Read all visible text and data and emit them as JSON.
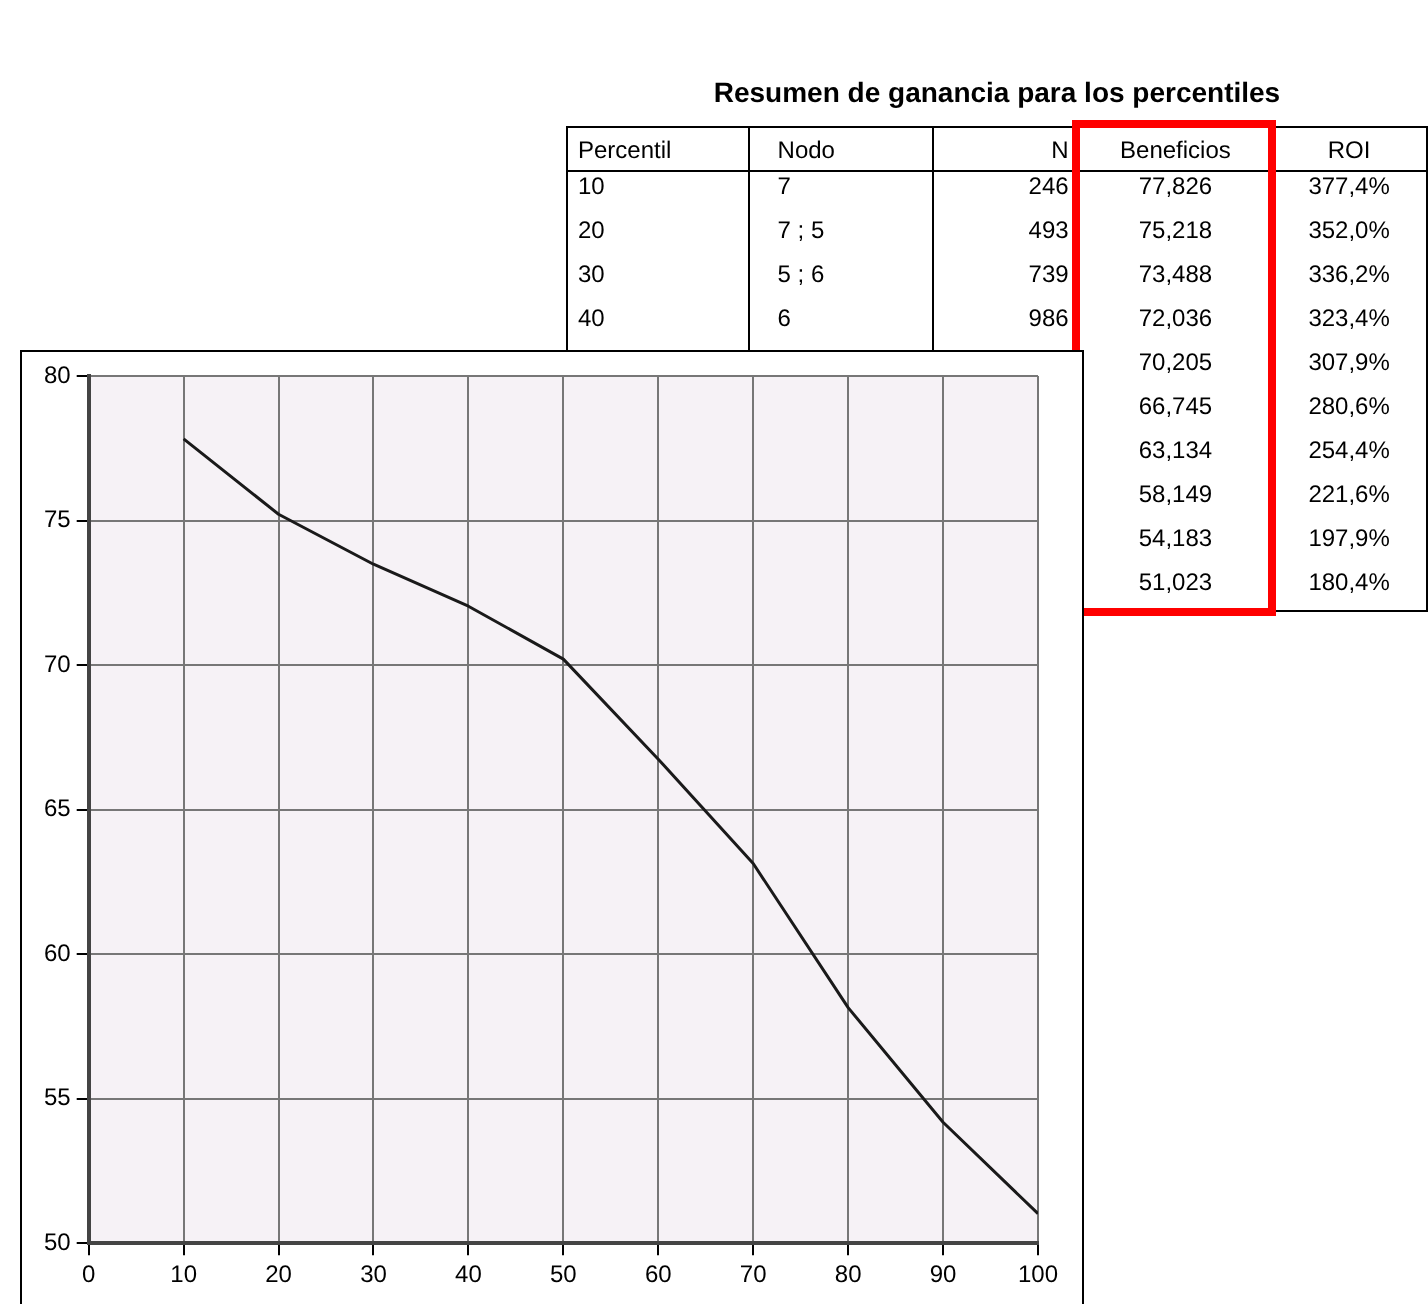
{
  "chart_data": [
    {
      "type": "other",
      "title": "Resumen de ganancia para los percentiles",
      "categories": [
        "Percentil",
        "Nodo",
        "N",
        "Beneficios",
        "ROI"
      ],
      "cell_labels": [
        [
          "10",
          "7",
          "246",
          "77,826",
          "377,4%"
        ],
        [
          "20",
          "7 ;  5",
          "493",
          "75,218",
          "352,0%"
        ],
        [
          "30",
          "5 ;  6",
          "739",
          "73,488",
          "336,2%"
        ],
        [
          "40",
          "6",
          "986",
          "72,036",
          "323,4%"
        ],
        [
          null,
          null,
          null,
          "70,205",
          "307,9%"
        ],
        [
          null,
          null,
          null,
          "66,745",
          "280,6%"
        ],
        [
          null,
          null,
          null,
          "63,134",
          "254,4%"
        ],
        [
          null,
          null,
          null,
          "58,149",
          "221,6%"
        ],
        [
          null,
          null,
          null,
          "54,183",
          "197,9%"
        ],
        [
          null,
          null,
          null,
          "51,023",
          "180,4%"
        ]
      ]
    },
    {
      "type": "line",
      "x": [
        10,
        20,
        30,
        40,
        50,
        60,
        70,
        80,
        90,
        100
      ],
      "series": [
        {
          "color": "#1a1a1a",
          "values": [
            77.826,
            75.218,
            73.488,
            72.036,
            70.205,
            66.745,
            63.134,
            58.149,
            54.183,
            51.023
          ]
        }
      ],
      "xlim": [
        0,
        100
      ],
      "xticks": [
        0,
        10,
        20,
        30,
        40,
        50,
        60,
        70,
        80,
        90,
        100
      ],
      "ylim": [
        50,
        80
      ],
      "yticks": [
        50,
        55,
        60,
        65,
        70,
        75,
        80
      ],
      "grid": true,
      "legend": false,
      "marker": "none",
      "line_style": "solid"
    }
  ]
}
